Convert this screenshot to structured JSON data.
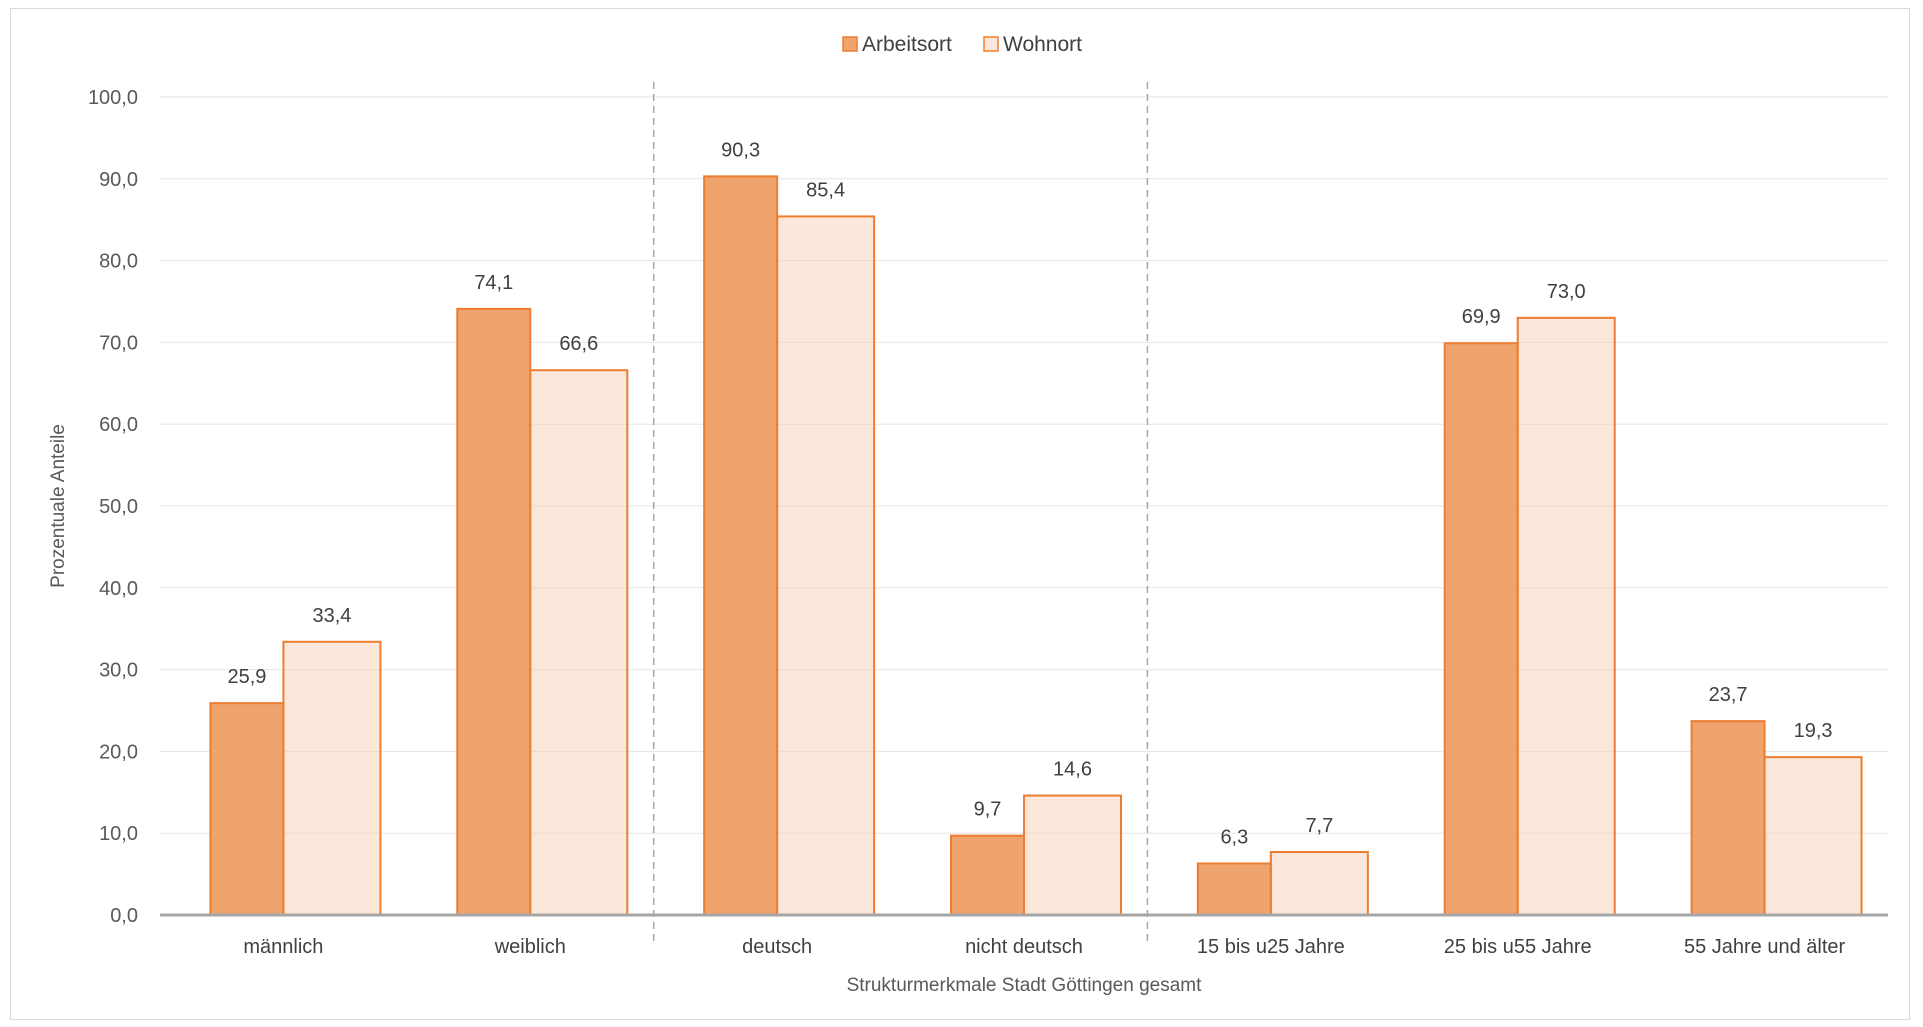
{
  "chart_data": {
    "type": "bar",
    "title": "",
    "xlabel": "Strukturmerkmale Stadt Göttingen gesamt",
    "ylabel": "Prozentuale Anteile",
    "ylim": [
      0,
      100
    ],
    "ytick_step": 10,
    "ytick_labels": [
      "0,0",
      "10,0",
      "20,0",
      "30,0",
      "40,0",
      "50,0",
      "60,0",
      "70,0",
      "80,0",
      "90,0",
      "100,0"
    ],
    "grid": true,
    "legend_position": "top-center",
    "categories": [
      "männlich",
      "weiblich",
      "deutsch",
      "nicht deutsch",
      "15 bis u25 Jahre",
      "25 bis u55 Jahre",
      "55 Jahre und älter"
    ],
    "group_separators_after": [
      1,
      3
    ],
    "series": [
      {
        "name": "Arbeitsort",
        "values": [
          25.9,
          74.1,
          90.3,
          9.7,
          6.3,
          69.9,
          23.7
        ],
        "labels": [
          "25,9",
          "74,1",
          "90,3",
          "9,7",
          "6,3",
          "69,9",
          "23,7"
        ],
        "fill": "#EFA46E",
        "stroke": "#ED7D31"
      },
      {
        "name": "Wohnort",
        "values": [
          33.4,
          66.6,
          85.4,
          14.6,
          7.7,
          73.0,
          19.3
        ],
        "labels": [
          "33,4",
          "66,6",
          "85,4",
          "14,6",
          "7,7",
          "73,0",
          "19,3"
        ],
        "fill": "rgba(248,203,173,0.45)",
        "stroke": "#ED7D31"
      }
    ]
  }
}
